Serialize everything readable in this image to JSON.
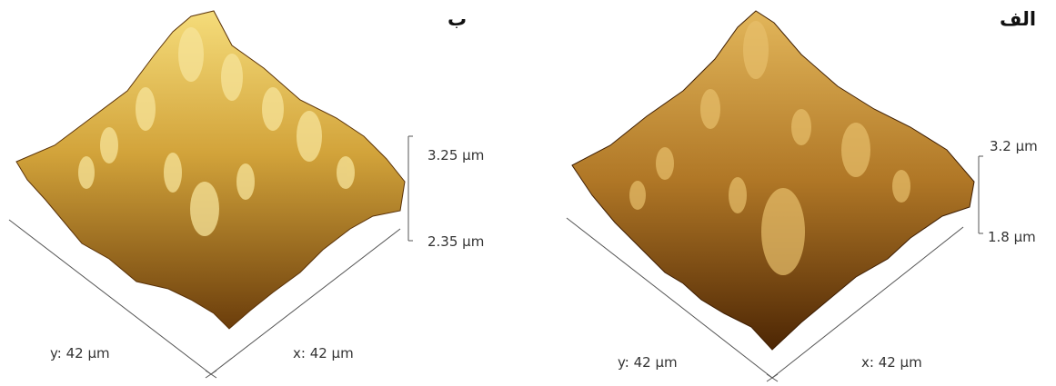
{
  "panels": [
    {
      "id": "b",
      "tag": "ب",
      "z_max": "3.25 µm",
      "z_min": "2.35 µm",
      "x_axis": "x: 42 µm",
      "y_axis": "y: 42 µm",
      "colors": {
        "light": "#f5dc7a",
        "mid": "#d2a33a",
        "dark": "#6b3d0b"
      }
    },
    {
      "id": "a",
      "tag": "الف",
      "z_max": "3.2 µm",
      "z_min": "1.8 µm",
      "x_axis": "x: 42 µm",
      "y_axis": "y: 42 µm",
      "colors": {
        "light": "#e2b65a",
        "mid": "#b07726",
        "dark": "#4d2604"
      }
    }
  ]
}
